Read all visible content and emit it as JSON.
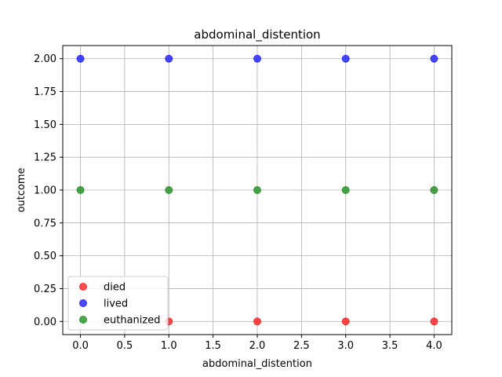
{
  "chart_data": {
    "type": "scatter",
    "title": "abdominal_distention",
    "xlabel": "abdominal_distention",
    "ylabel": "outcome",
    "xlim": [
      -0.2,
      4.2
    ],
    "ylim": [
      -0.1,
      2.1
    ],
    "x_ticks": [
      0.0,
      0.5,
      1.0,
      1.5,
      2.0,
      2.5,
      3.0,
      3.5,
      4.0
    ],
    "x_tick_labels": [
      "0.0",
      "0.5",
      "1.0",
      "1.5",
      "2.0",
      "2.5",
      "3.0",
      "3.5",
      "4.0"
    ],
    "y_ticks": [
      0.0,
      0.25,
      0.5,
      0.75,
      1.0,
      1.25,
      1.5,
      1.75,
      2.0
    ],
    "y_tick_labels": [
      "0.00",
      "0.25",
      "0.50",
      "0.75",
      "1.00",
      "1.25",
      "1.50",
      "1.75",
      "2.00"
    ],
    "grid": true,
    "legend_position": "lower-left",
    "series": [
      {
        "name": "died",
        "color": "#ff0000",
        "x": [
          1,
          2,
          3,
          4
        ],
        "y": [
          0,
          0,
          0,
          0
        ]
      },
      {
        "name": "lived",
        "color": "#0000ff",
        "x": [
          0,
          1,
          2,
          3,
          4
        ],
        "y": [
          2,
          2,
          2,
          2,
          2
        ]
      },
      {
        "name": "euthanized",
        "color": "#008000",
        "x": [
          0,
          1,
          2,
          3,
          4
        ],
        "y": [
          1,
          1,
          1,
          1,
          1
        ]
      }
    ]
  }
}
